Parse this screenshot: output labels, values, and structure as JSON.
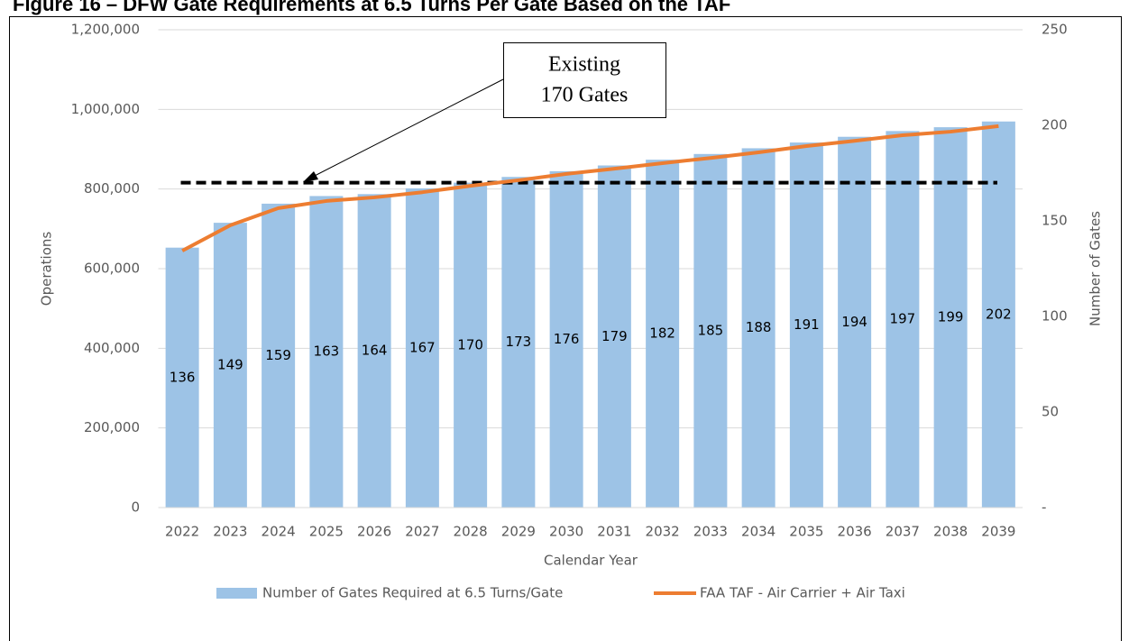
{
  "chart_data": {
    "type": "bar-line",
    "title": "Figure 16 – DFW Gate Requirements at 6.5 Turns Per Gate Based on the TAF",
    "x_label": "Calendar Year",
    "y_label": "Operations",
    "y2_label": "Number of Gates",
    "categories": [
      "2022",
      "2023",
      "2024",
      "2025",
      "2026",
      "2027",
      "2028",
      "2029",
      "2030",
      "2031",
      "2032",
      "2033",
      "2034",
      "2035",
      "2036",
      "2037",
      "2038",
      "2039"
    ],
    "series": [
      {
        "name": "Number of Gates Required at 6.5 Turns/Gate",
        "type": "bar",
        "axis": "y2",
        "color": "#9dc3e6",
        "values": [
          136,
          149,
          159,
          163,
          164,
          167,
          170,
          173,
          176,
          179,
          182,
          185,
          188,
          191,
          194,
          197,
          199,
          202
        ]
      },
      {
        "name": "FAA TAF - Air Carrier + Air Taxi",
        "type": "line",
        "axis": "y",
        "color": "#ed7d31",
        "values": [
          645000,
          709000,
          752000,
          770000,
          779000,
          792000,
          808000,
          822000,
          838000,
          851000,
          865000,
          878000,
          892000,
          908000,
          921000,
          935000,
          944000,
          958000
        ]
      }
    ],
    "reference_line": {
      "value": 170,
      "axis": "y2",
      "color": "#000000"
    },
    "annotation": [
      "Existing",
      "170 Gates"
    ],
    "ylim": [
      0,
      1200000
    ],
    "yticks": [
      0,
      {
        "value": 200000,
        "label": "200,000"
      },
      {
        "value": 400000,
        "label": "400,000"
      },
      {
        "value": 600000,
        "label": "600,000"
      },
      {
        "value": 800000,
        "label": "800,000"
      },
      {
        "value": 1000000,
        "label": "1,000,000"
      },
      {
        "value": 1200000,
        "label": "1,200,000"
      }
    ],
    "y2lim": [
      0,
      250
    ],
    "y2ticks": [
      {
        "value": 0,
        "label": "-"
      },
      50,
      100,
      150,
      200,
      250
    ],
    "grid": true,
    "legend": "bottom"
  }
}
